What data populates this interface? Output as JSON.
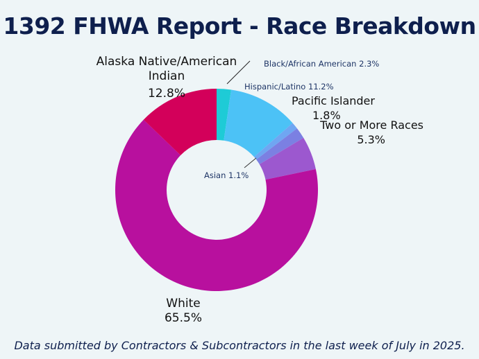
{
  "title": "1392 FHWA Report - Race Breakdown",
  "footer": "Data submitted by Contractors & Subcontractors in the last week of July in 2025.",
  "chart_data": {
    "type": "pie",
    "donut": true,
    "title": "1392 FHWA Report - Race Breakdown",
    "unit": "%",
    "slices": [
      {
        "label": "Black/African American",
        "value": 2.3,
        "display": "2.3%",
        "color": "#1ecbd6"
      },
      {
        "label": "Hispanic/Latino",
        "value": 11.2,
        "display": "11.2%",
        "color": "#4cc2f6"
      },
      {
        "label": "Asian",
        "value": 1.1,
        "display": "1.1%",
        "color": "#6fa6f2"
      },
      {
        "label": "Pacific Islander",
        "value": 1.8,
        "display": "1.8%",
        "color": "#7b80e2"
      },
      {
        "label": "Two or More Races",
        "value": 5.3,
        "display": "5.3%",
        "color": "#9c58cf"
      },
      {
        "label": "White",
        "value": 65.5,
        "display": "65.5%",
        "color": "#b8109e"
      },
      {
        "label": "Alaska Native/American Indian",
        "value": 12.8,
        "display": "12.8%",
        "color": "#d3005a"
      }
    ]
  }
}
